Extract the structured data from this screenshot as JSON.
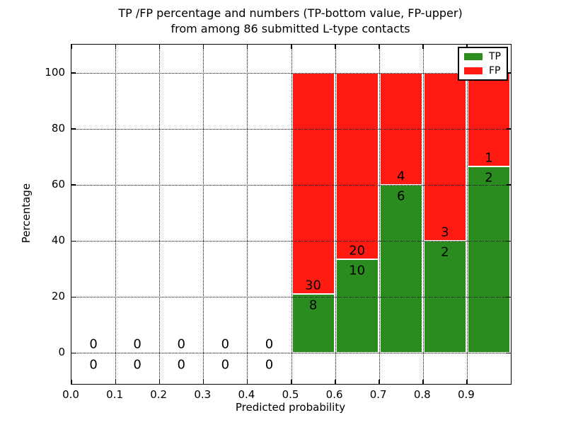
{
  "chart_data": {
    "type": "bar",
    "stacked": true,
    "title": "TP /FP percentage and numbers (TP-bottom value, FP-upper)",
    "subtitle": "from among 86 submitted L-type contacts",
    "xlabel": "Predicted probability",
    "ylabel": "Percentage",
    "xlim": [
      0.0,
      1.0
    ],
    "ylim": [
      -11,
      110
    ],
    "xtick_labels": [
      "0.0",
      "0.1",
      "0.2",
      "0.3",
      "0.4",
      "0.5",
      "0.6",
      "0.7",
      "0.8",
      "0.9"
    ],
    "xtick_values": [
      0.0,
      0.1,
      0.2,
      0.3,
      0.4,
      0.5,
      0.6,
      0.7,
      0.8,
      0.9
    ],
    "ytick_values": [
      0,
      20,
      40,
      60,
      80,
      100
    ],
    "grid": {
      "style": "dotted",
      "color": "#000000",
      "on": true
    },
    "colors": {
      "tp": "#2a8c1f",
      "fp": "#ff1b12"
    },
    "legend": {
      "position": "upper right",
      "entries": [
        {
          "label": "TP",
          "color": "#2a8c1f"
        },
        {
          "label": "FP",
          "color": "#ff1b12"
        }
      ]
    },
    "bins": [
      {
        "x0": 0.0,
        "x1": 0.1,
        "tp": 0,
        "fp": 0
      },
      {
        "x0": 0.1,
        "x1": 0.2,
        "tp": 0,
        "fp": 0
      },
      {
        "x0": 0.2,
        "x1": 0.3,
        "tp": 0,
        "fp": 0
      },
      {
        "x0": 0.3,
        "x1": 0.4,
        "tp": 0,
        "fp": 0
      },
      {
        "x0": 0.4,
        "x1": 0.5,
        "tp": 0,
        "fp": 0
      },
      {
        "x0": 0.5,
        "x1": 0.6,
        "tp": 8,
        "fp": 30
      },
      {
        "x0": 0.6,
        "x1": 0.7,
        "tp": 10,
        "fp": 20
      },
      {
        "x0": 0.7,
        "x1": 0.8,
        "tp": 6,
        "fp": 4
      },
      {
        "x0": 0.8,
        "x1": 0.9,
        "tp": 2,
        "fp": 3
      },
      {
        "x0": 0.9,
        "x1": 1.0,
        "tp": 2,
        "fp": 1
      }
    ]
  }
}
